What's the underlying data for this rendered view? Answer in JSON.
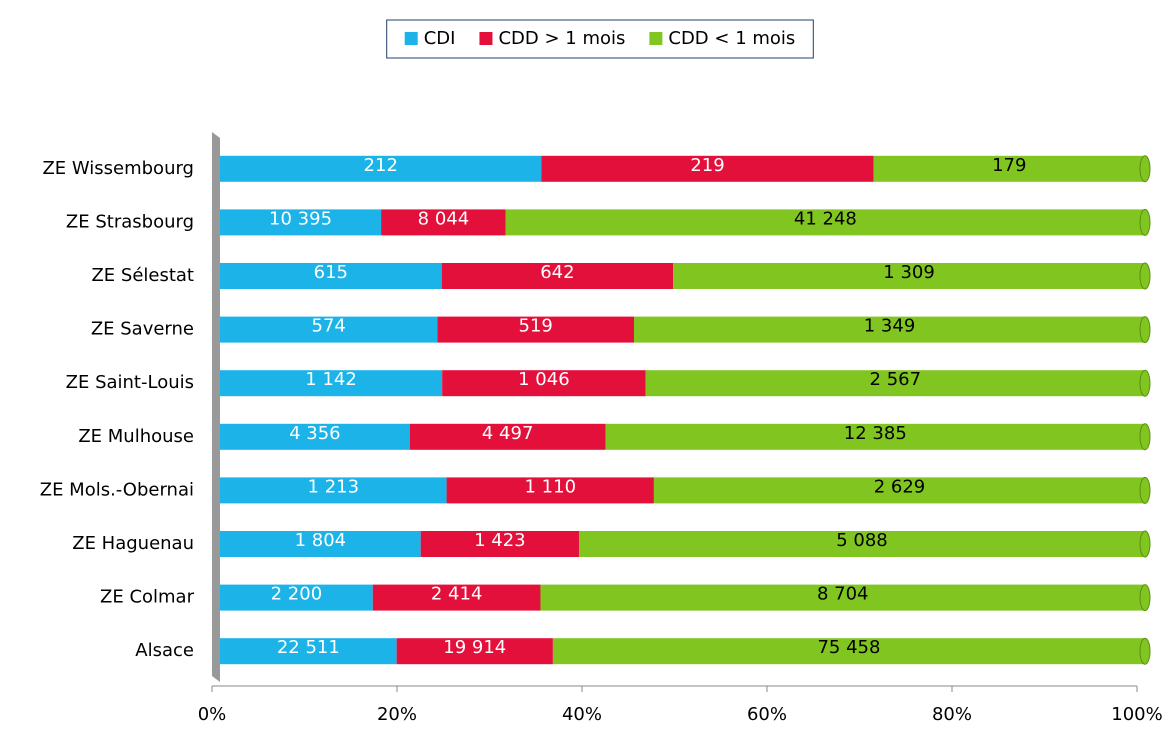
{
  "chart_data": {
    "type": "bar",
    "orientation": "horizontal",
    "stacking": "percent",
    "categories": [
      "ZE Wissembourg",
      "ZE Strasbourg",
      "ZE Sélestat",
      "ZE Saverne",
      "ZE Saint-Louis",
      "ZE Mulhouse",
      "ZE Mols.-Obernai",
      "ZE Haguenau",
      "ZE Colmar",
      "Alsace"
    ],
    "series": [
      {
        "name": "CDI",
        "color": "#1cb3e8",
        "label_color": "#ffffff",
        "values": [
          212,
          10395,
          615,
          574,
          1142,
          4356,
          1213,
          1804,
          2200,
          22511
        ],
        "value_labels": [
          "212",
          "10 395",
          "615",
          "574",
          "1 142",
          "4 356",
          "1 213",
          "1 804",
          "2 200",
          "22 511"
        ]
      },
      {
        "name": "CDD > 1 mois",
        "color": "#e4103c",
        "label_color": "#ffffff",
        "values": [
          219,
          8044,
          642,
          519,
          1046,
          4497,
          1110,
          1423,
          2414,
          19914
        ],
        "value_labels": [
          "219",
          "8 044",
          "642",
          "519",
          "1 046",
          "4 497",
          "1 110",
          "1 423",
          "2 414",
          "19 914"
        ]
      },
      {
        "name": "CDD < 1 mois",
        "color": "#80c520",
        "label_color": "#000000",
        "values": [
          179,
          41248,
          1309,
          1349,
          2567,
          12385,
          2629,
          5088,
          8704,
          75458
        ],
        "value_labels": [
          "179",
          "41 248",
          "1 309",
          "1 349",
          "2 567",
          "12 385",
          "2 629",
          "5 088",
          "8 704",
          "75 458"
        ]
      }
    ],
    "xlim": [
      0,
      100
    ],
    "xticks": [
      {
        "value": 0,
        "label": "0%"
      },
      {
        "value": 20,
        "label": "20%"
      },
      {
        "value": 40,
        "label": "40%"
      },
      {
        "value": 60,
        "label": "60%"
      },
      {
        "value": 80,
        "label": "80%"
      },
      {
        "value": 100,
        "label": "100%"
      }
    ],
    "legend": "top"
  }
}
